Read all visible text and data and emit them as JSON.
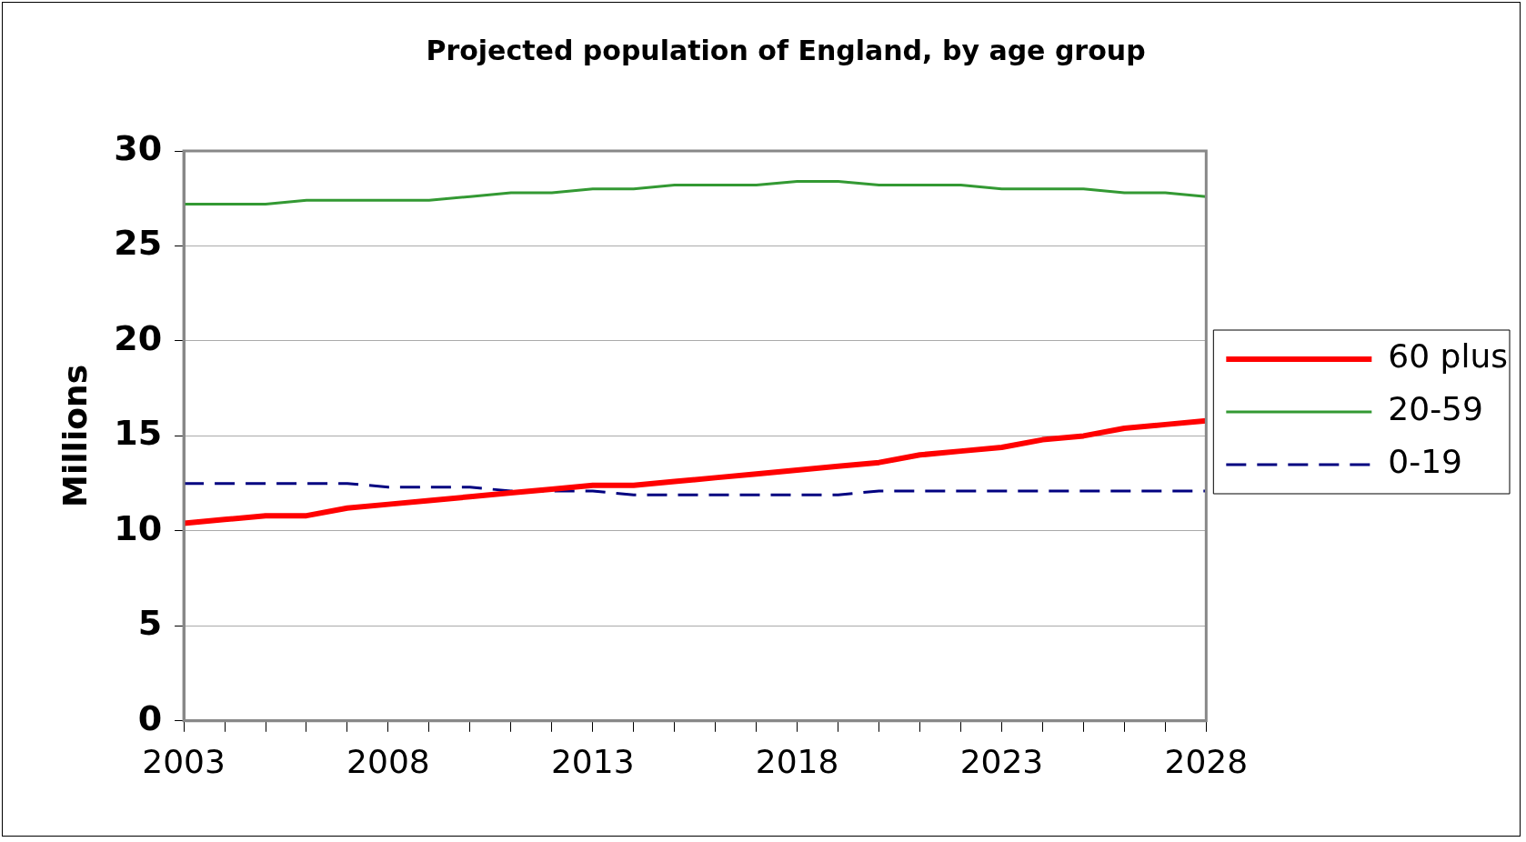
{
  "chart_data": {
    "type": "line",
    "title": "Projected population of England, by age group",
    "ylabel": "Millions",
    "x": [
      2003,
      2004,
      2005,
      2006,
      2007,
      2008,
      2009,
      2010,
      2011,
      2012,
      2013,
      2014,
      2015,
      2016,
      2017,
      2018,
      2019,
      2020,
      2021,
      2022,
      2023,
      2024,
      2025,
      2026,
      2027,
      2028
    ],
    "series": [
      {
        "name": "60 plus",
        "color": "#ff0000",
        "line_style": "solid",
        "values": [
          10.4,
          10.6,
          10.8,
          10.8,
          11.2,
          11.4,
          11.6,
          11.8,
          12.0,
          12.2,
          12.4,
          12.4,
          12.6,
          12.8,
          13.0,
          13.2,
          13.4,
          13.6,
          14.0,
          14.2,
          14.4,
          14.8,
          15.0,
          15.4,
          15.6,
          15.8
        ]
      },
      {
        "name": "20-59",
        "color": "#339933",
        "line_style": "solid",
        "values": [
          27.2,
          27.2,
          27.2,
          27.4,
          27.4,
          27.4,
          27.4,
          27.6,
          27.8,
          27.8,
          28.0,
          28.0,
          28.2,
          28.2,
          28.2,
          28.4,
          28.4,
          28.2,
          28.2,
          28.2,
          28.0,
          28.0,
          28.0,
          27.8,
          27.8,
          27.6
        ]
      },
      {
        "name": "0-19",
        "color": "#000080",
        "line_style": "dashed",
        "values": [
          12.5,
          12.5,
          12.5,
          12.5,
          12.5,
          12.3,
          12.3,
          12.3,
          12.1,
          12.1,
          12.1,
          11.9,
          11.9,
          11.9,
          11.9,
          11.9,
          11.9,
          12.1,
          12.1,
          12.1,
          12.1,
          12.1,
          12.1,
          12.1,
          12.1,
          12.1
        ]
      }
    ],
    "xlim": [
      2003,
      2028
    ],
    "xticks": [
      2003,
      {
        "value": 2004,
        "label": null
      },
      {
        "value": 2005,
        "label": null
      },
      {
        "value": 2006,
        "label": null
      },
      {
        "value": 2007,
        "label": null
      },
      2008,
      {
        "value": 2009,
        "label": null
      },
      {
        "value": 2010,
        "label": null
      },
      {
        "value": 2011,
        "label": null
      },
      {
        "value": 2012,
        "label": null
      },
      2013,
      {
        "value": 2014,
        "label": null
      },
      {
        "value": 2015,
        "label": null
      },
      {
        "value": 2016,
        "label": null
      },
      {
        "value": 2017,
        "label": null
      },
      2018,
      {
        "value": 2019,
        "label": null
      },
      {
        "value": 2020,
        "label": null
      },
      {
        "value": 2021,
        "label": null
      },
      {
        "value": 2022,
        "label": null
      },
      2023,
      {
        "value": 2024,
        "label": null
      },
      {
        "value": 2025,
        "label": null
      },
      {
        "value": 2026,
        "label": null
      },
      {
        "value": 2027,
        "label": null
      },
      2028
    ],
    "ylim": [
      0,
      30
    ],
    "yticks": [
      0,
      5,
      10,
      15,
      20,
      25,
      30
    ],
    "grid": "y",
    "legend": "right",
    "marker": "none"
  }
}
